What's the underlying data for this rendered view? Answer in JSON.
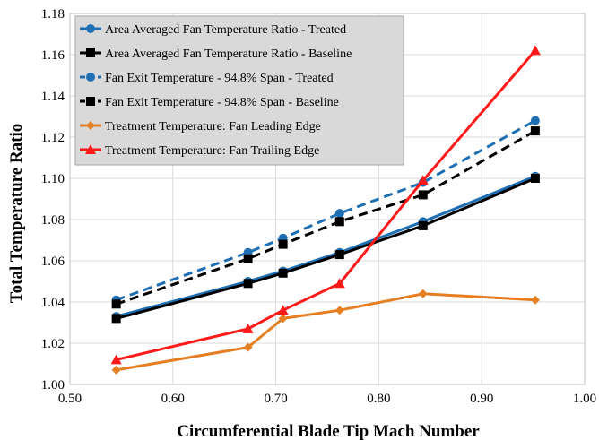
{
  "chart_data": {
    "type": "line",
    "xlabel": "Circumferential Blade Tip Mach Number",
    "ylabel": "Total Temperature Ratio",
    "xlim": [
      0.5,
      1.0
    ],
    "ylim": [
      1.0,
      1.18
    ],
    "xticks": [
      "0.50",
      "0.60",
      "0.70",
      "0.80",
      "0.90",
      "1.00"
    ],
    "yticks": [
      "1.00",
      "1.02",
      "1.04",
      "1.06",
      "1.08",
      "1.10",
      "1.12",
      "1.14",
      "1.16",
      "1.18"
    ],
    "grid": true,
    "legend_position": "top-left",
    "series": [
      {
        "name": "Area Averaged Fan Temperature Ratio - Treated",
        "color": "#1f6fb5",
        "marker": "circle",
        "dash": "solid",
        "x": [
          0.545,
          0.673,
          0.707,
          0.762,
          0.843,
          0.952
        ],
        "y": [
          1.033,
          1.05,
          1.055,
          1.064,
          1.079,
          1.101
        ]
      },
      {
        "name": "Area Averaged Fan Temperature Ratio - Baseline",
        "color": "#000000",
        "marker": "square",
        "dash": "solid",
        "x": [
          0.545,
          0.673,
          0.707,
          0.762,
          0.843,
          0.952
        ],
        "y": [
          1.032,
          1.049,
          1.054,
          1.063,
          1.077,
          1.1
        ]
      },
      {
        "name": "Fan Exit Temperature - 94.8% Span - Treated",
        "color": "#1f6fb5",
        "marker": "circle",
        "dash": "dashed",
        "x": [
          0.545,
          0.673,
          0.707,
          0.762,
          0.843,
          0.952
        ],
        "y": [
          1.041,
          1.064,
          1.071,
          1.083,
          1.098,
          1.128
        ]
      },
      {
        "name": "Fan Exit Temperature - 94.8% Span - Baseline",
        "color": "#000000",
        "marker": "square",
        "dash": "dashed",
        "x": [
          0.545,
          0.673,
          0.707,
          0.762,
          0.843,
          0.952
        ],
        "y": [
          1.039,
          1.061,
          1.068,
          1.079,
          1.092,
          1.123
        ]
      },
      {
        "name": "Treatment Temperature: Fan Leading Edge",
        "color": "#e67e22",
        "marker": "diamond",
        "dash": "solid",
        "x": [
          0.545,
          0.673,
          0.707,
          0.762,
          0.843,
          0.952
        ],
        "y": [
          1.007,
          1.018,
          1.032,
          1.036,
          1.044,
          1.041
        ]
      },
      {
        "name": "Treatment Temperature: Fan Trailing Edge",
        "color": "#ff1a1a",
        "marker": "triangle",
        "dash": "solid",
        "x": [
          0.545,
          0.673,
          0.707,
          0.762,
          0.843,
          0.952
        ],
        "y": [
          1.012,
          1.027,
          1.036,
          1.049,
          1.099,
          1.162
        ]
      }
    ]
  }
}
